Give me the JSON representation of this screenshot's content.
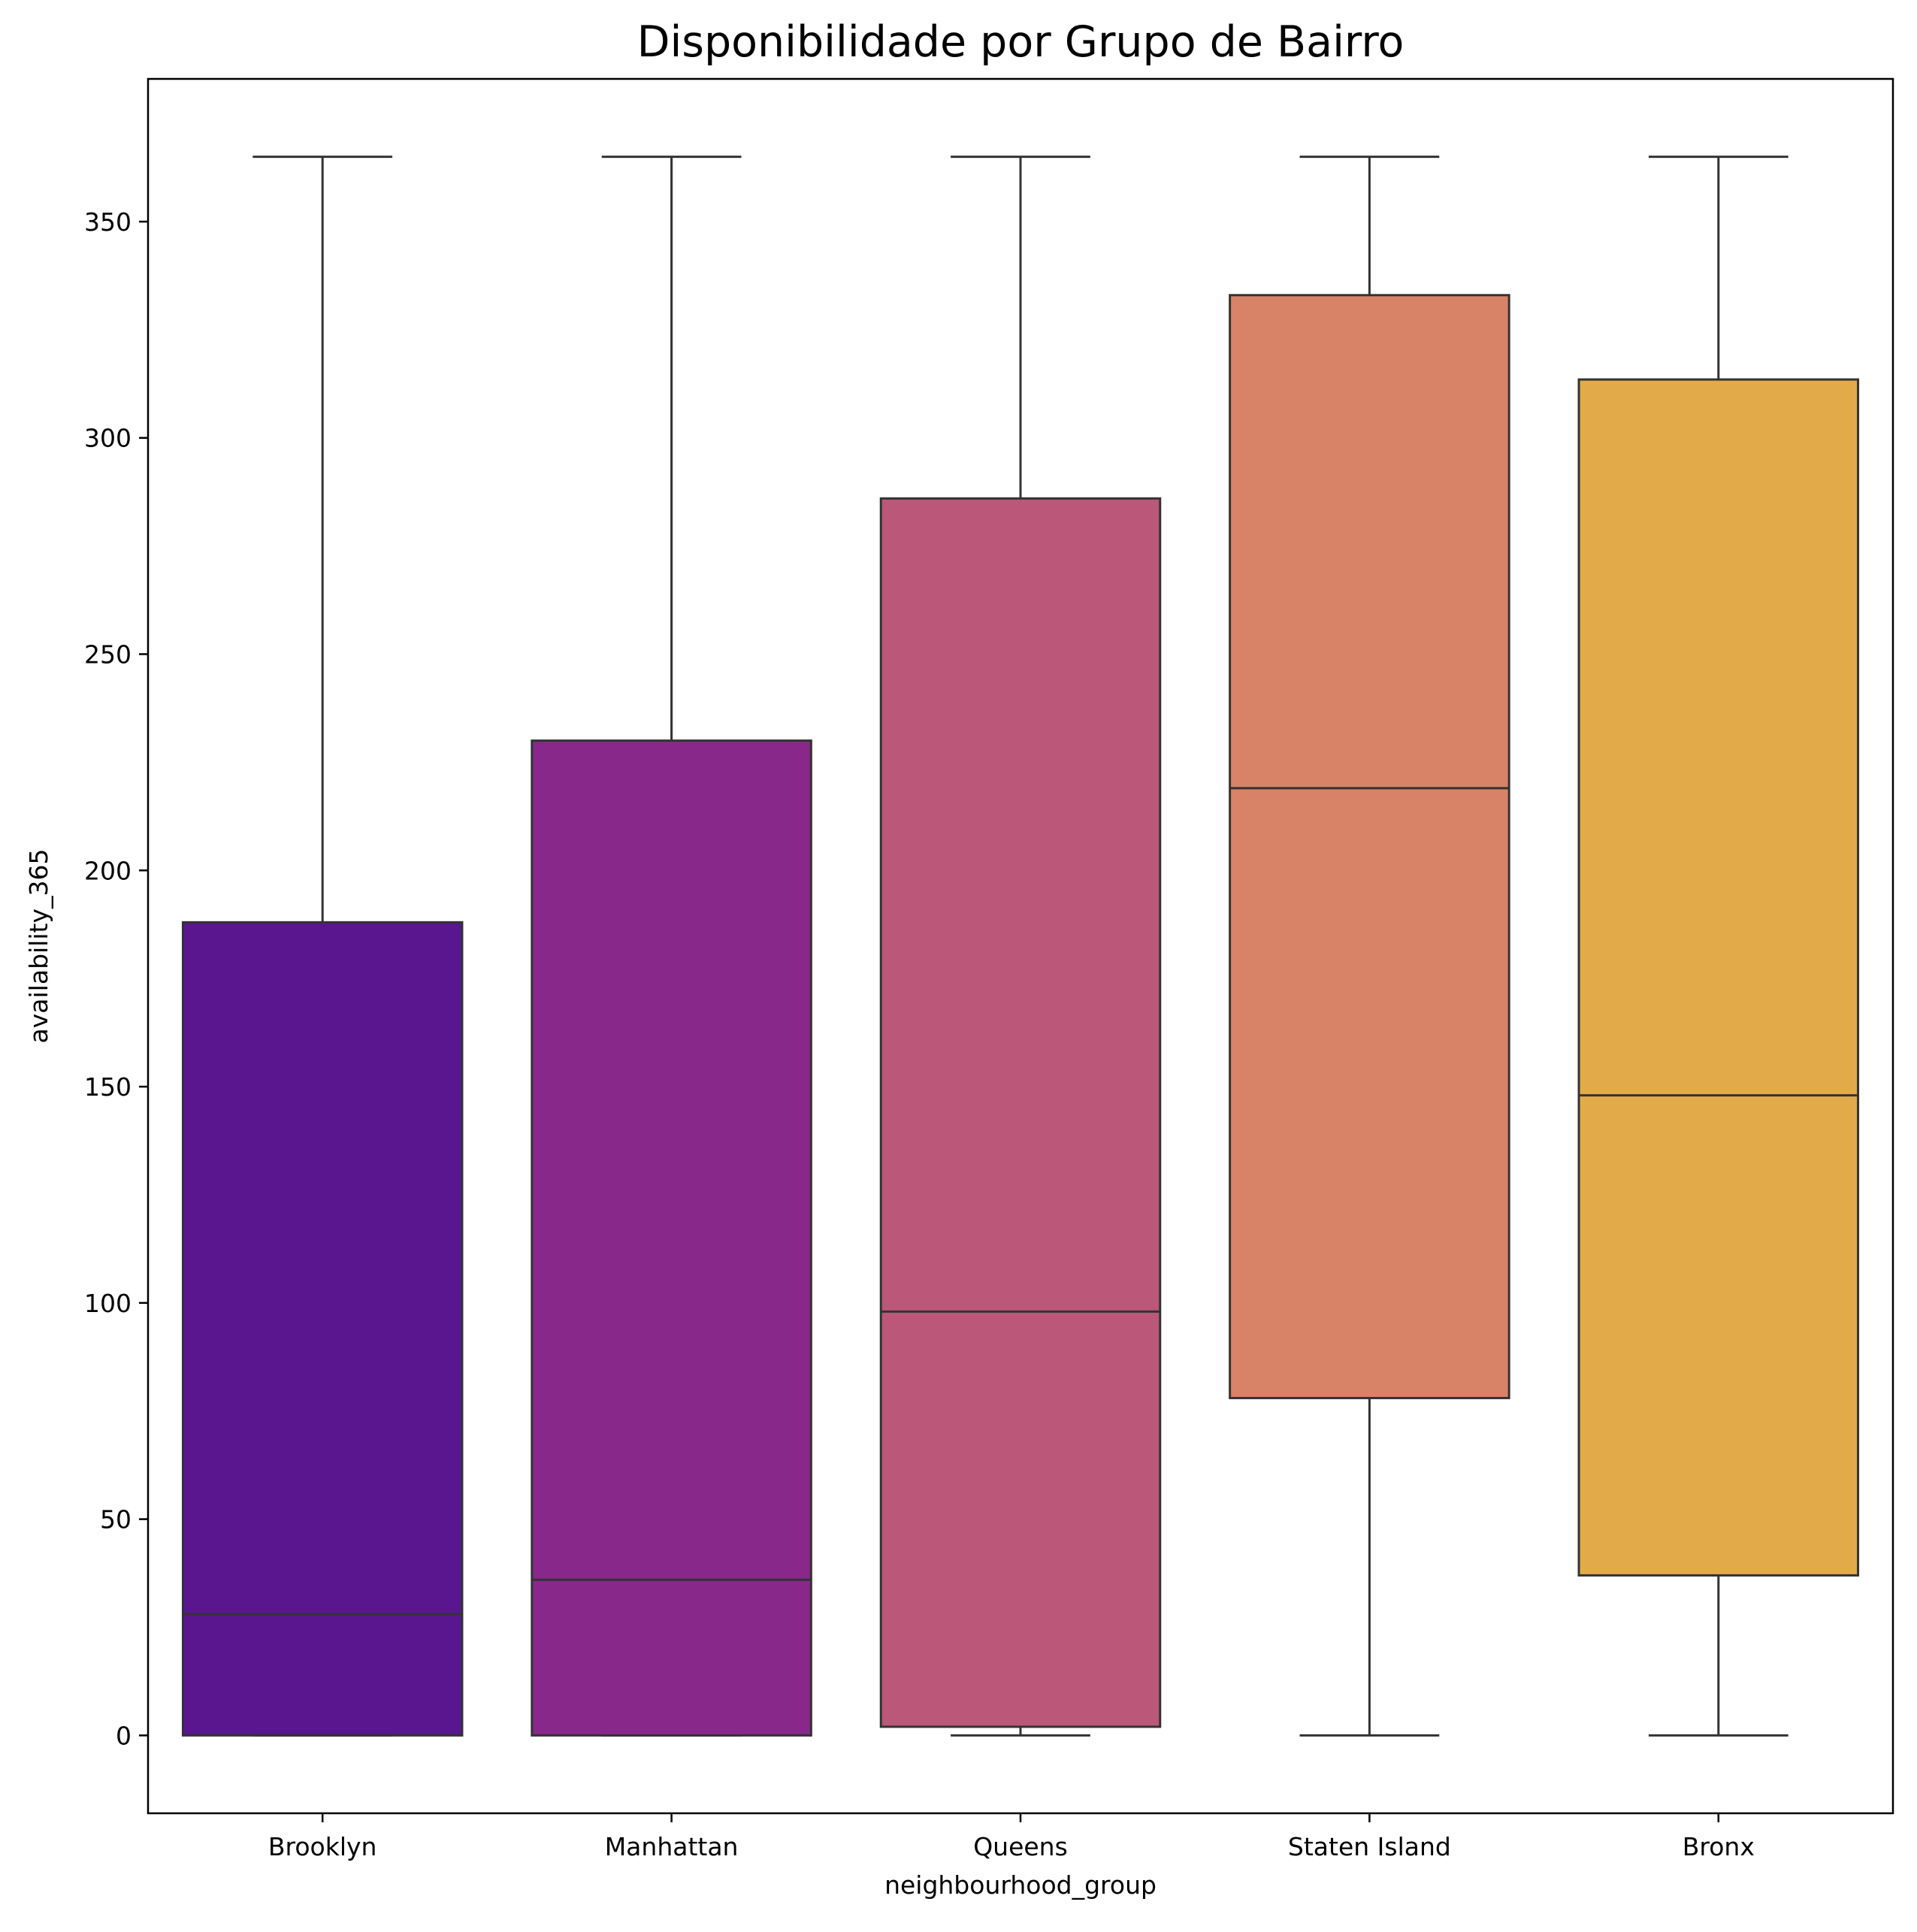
{
  "chart_data": {
    "type": "box",
    "title": "Disponibilidade por Grupo de Bairro",
    "xlabel": "neighbourhood_group",
    "ylabel": "availability_365",
    "ylim": [
      -18,
      383
    ],
    "yticks": [
      0,
      50,
      100,
      150,
      200,
      250,
      300,
      350
    ],
    "grid": false,
    "legend": "none",
    "stroke_color": "#333333",
    "categories": [
      "Brooklyn",
      "Manhattan",
      "Queens",
      "Staten Island",
      "Bronx"
    ],
    "boxes": [
      {
        "category": "Brooklyn",
        "whisker_low": 0,
        "q1": 0,
        "median": 28,
        "q3": 188,
        "whisker_high": 365,
        "color": "#5a168f"
      },
      {
        "category": "Manhattan",
        "whisker_low": 0,
        "q1": 0,
        "median": 36,
        "q3": 230,
        "whisker_high": 365,
        "color": "#88288b"
      },
      {
        "category": "Queens",
        "whisker_low": 0,
        "q1": 2,
        "median": 98,
        "q3": 286,
        "whisker_high": 365,
        "color": "#bb5779"
      },
      {
        "category": "Staten Island",
        "whisker_low": 0,
        "q1": 78,
        "median": 219,
        "q3": 333,
        "whisker_high": 365,
        "color": "#d88367"
      },
      {
        "category": "Bronx",
        "whisker_low": 0,
        "q1": 37,
        "median": 148,
        "q3": 313.5,
        "whisker_high": 365,
        "color": "#e2aa48"
      }
    ]
  }
}
